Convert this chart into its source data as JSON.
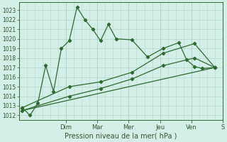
{
  "xlabel": "Pression niveau de la mer( hPa )",
  "background_color": "#d4eee8",
  "grid_color": "#b8d8d0",
  "line_color": "#2d6b2d",
  "ylim": [
    1011.5,
    1023.8
  ],
  "xlim": [
    0,
    13
  ],
  "day_labels": [
    "Dim",
    "Mar",
    "Mer",
    "Jeu",
    "Ven",
    "S"
  ],
  "day_positions": [
    3,
    5,
    7,
    9,
    11,
    13
  ],
  "series1_x": [
    0.2,
    0.7,
    1.2,
    1.7,
    2.2,
    2.7,
    3.2,
    3.7,
    4.2,
    4.7,
    5.2,
    5.7,
    6.2,
    7.2,
    8.2,
    9.2,
    10.2,
    10.7,
    11.2,
    11.7,
    12.5
  ],
  "series1_y": [
    1012.8,
    1012.0,
    1013.3,
    1017.2,
    1014.5,
    1019.0,
    1019.8,
    1023.3,
    1022.0,
    1021.0,
    1019.8,
    1021.5,
    1020.0,
    1019.9,
    1018.1,
    1019.0,
    1019.6,
    1017.8,
    1017.1,
    1016.9,
    1017.0
  ],
  "series2_x": [
    0.2,
    3.2,
    5.2,
    7.2,
    9.2,
    11.2,
    12.5
  ],
  "series2_y": [
    1012.8,
    1015.0,
    1015.5,
    1016.5,
    1018.5,
    1019.5,
    1017.0
  ],
  "series3_x": [
    0.2,
    3.2,
    5.2,
    7.2,
    9.2,
    11.2,
    12.5
  ],
  "series3_y": [
    1012.5,
    1014.0,
    1014.8,
    1015.8,
    1017.2,
    1018.0,
    1017.0
  ],
  "series4_x": [
    0.2,
    12.5
  ],
  "series4_y": [
    1012.5,
    1017.0
  ],
  "yticks": [
    1012,
    1013,
    1014,
    1015,
    1016,
    1017,
    1018,
    1019,
    1020,
    1021,
    1022,
    1023
  ]
}
